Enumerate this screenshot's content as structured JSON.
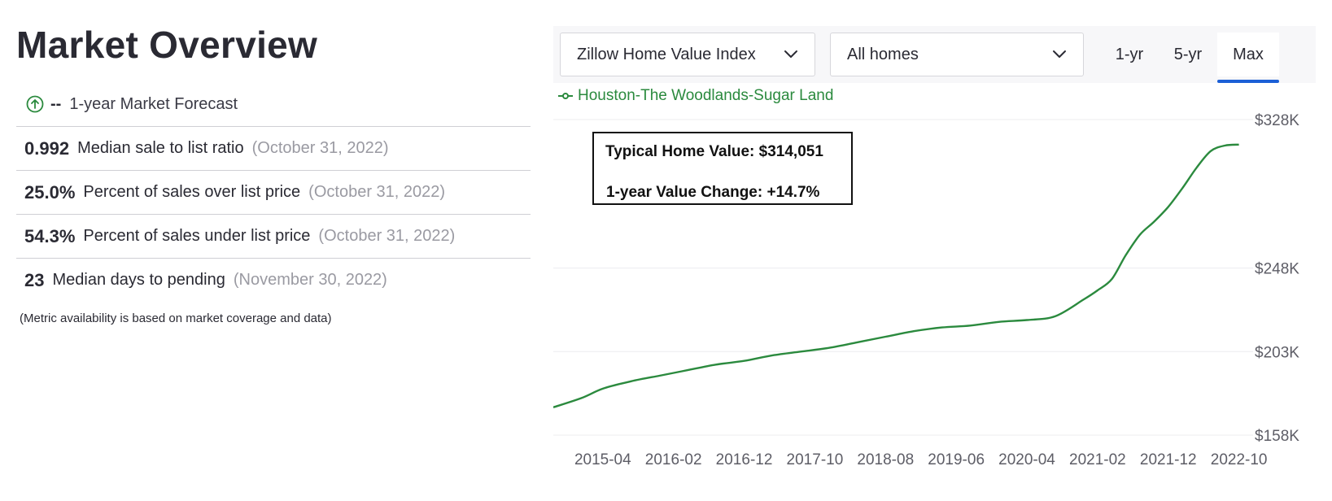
{
  "overview": {
    "title": "Market Overview",
    "forecast": {
      "icon": "arrow-up-circle-icon",
      "value": "--",
      "label": "1-year Market Forecast"
    },
    "metrics": [
      {
        "value": "0.992",
        "label": "Median sale to list ratio",
        "date": "(October 31, 2022)"
      },
      {
        "value": "25.0%",
        "label": "Percent of sales over list price",
        "date": "(October 31, 2022)"
      },
      {
        "value": "54.3%",
        "label": "Percent of sales under list price",
        "date": "(October 31, 2022)"
      },
      {
        "value": "23",
        "label": "Median days to pending",
        "date": "(November 30, 2022)"
      }
    ],
    "note": "(Metric availability is based on market coverage and data)"
  },
  "controls": {
    "index_select": "Zillow Home Value Index",
    "home_type_select": "All homes",
    "ranges": [
      "1-yr",
      "5-yr",
      "Max"
    ],
    "active_range": "Max"
  },
  "tooltip": {
    "line1": "Typical Home Value: $314,051",
    "line2": "1-year Value Change: +14.7%"
  },
  "colors": {
    "series": "#2b8a3e",
    "accent": "#1b5fd6",
    "grid": "#ececef"
  },
  "chart_data": {
    "type": "line",
    "title": "",
    "xlabel": "",
    "ylabel": "",
    "series": [
      {
        "name": "Houston-The Woodlands-Sugar Land",
        "x": [
          "2014-09",
          "2015-01",
          "2015-04",
          "2015-08",
          "2015-12",
          "2016-04",
          "2016-08",
          "2016-12",
          "2017-04",
          "2017-08",
          "2017-12",
          "2018-04",
          "2018-08",
          "2018-12",
          "2019-04",
          "2019-08",
          "2019-12",
          "2020-04",
          "2020-08",
          "2020-12",
          "2021-02",
          "2021-04",
          "2021-06",
          "2021-08",
          "2021-10",
          "2021-12",
          "2022-02",
          "2022-04",
          "2022-06",
          "2022-08",
          "2022-10"
        ],
        "values": [
          173,
          178,
          183,
          187,
          190,
          193,
          196,
          198,
          201,
          203,
          205,
          208,
          211,
          214,
          216,
          217,
          219,
          220,
          222,
          231,
          236,
          242,
          255,
          266,
          273,
          281,
          291,
          302,
          311,
          314,
          314.5
        ]
      }
    ],
    "x_ticks": [
      "2015-04",
      "2016-02",
      "2016-12",
      "2017-10",
      "2018-08",
      "2019-06",
      "2020-04",
      "2021-02",
      "2021-12",
      "2022-10"
    ],
    "y_ticks": [
      {
        "value": 158,
        "label": "$158K"
      },
      {
        "value": 203,
        "label": "$203K"
      },
      {
        "value": 248,
        "label": "$248K"
      },
      {
        "value": 328,
        "label": "$328K"
      }
    ],
    "ylim": [
      158,
      328
    ],
    "xlim": [
      "2014-09",
      "2022-12"
    ],
    "grid": true,
    "legend": "top-left"
  }
}
